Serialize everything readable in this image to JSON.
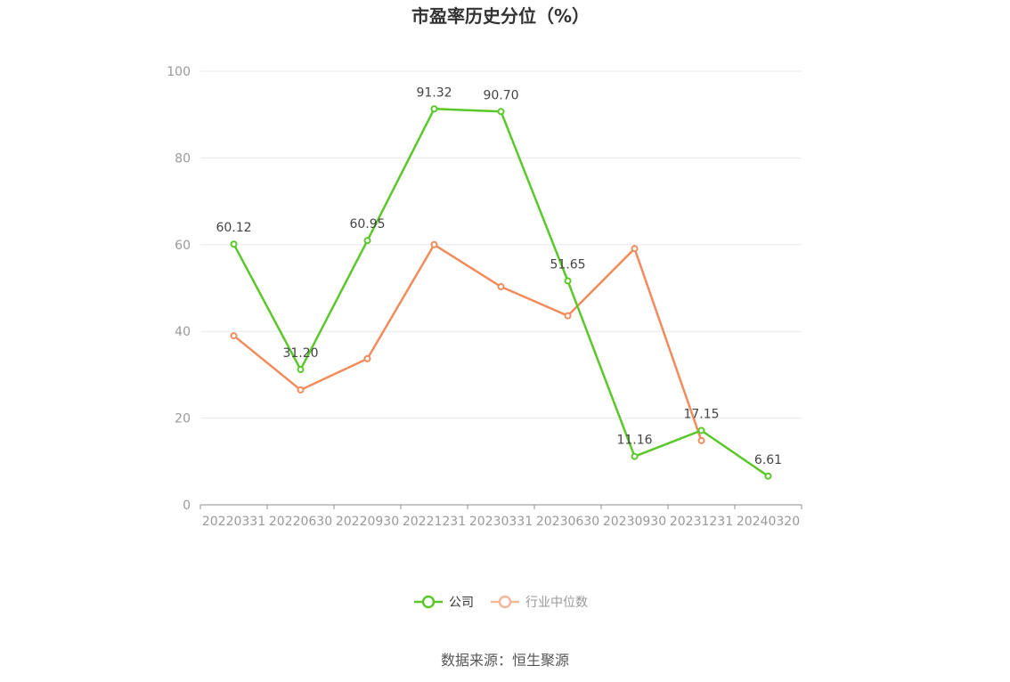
{
  "chart_data": {
    "type": "line",
    "title": "市盈率历史分位（%）",
    "x": [
      "20220331",
      "20220630",
      "20220930",
      "20221231",
      "20230331",
      "20230630",
      "20230930",
      "20231231",
      "20240320"
    ],
    "ylim": [
      0,
      100
    ],
    "yticks": [
      0,
      20,
      40,
      60,
      80,
      100
    ],
    "grid": true,
    "legend_position": "bottom",
    "series": [
      {
        "name": "公司",
        "color": "#5ac82a",
        "values": [
          60.12,
          31.2,
          60.95,
          91.32,
          90.7,
          51.65,
          11.16,
          17.15,
          6.61
        ],
        "labels": [
          "60.12",
          "31.20",
          "60.95",
          "91.32",
          "90.70",
          "51.65",
          "11.16",
          "17.15",
          "6.61"
        ]
      },
      {
        "name": "行业中位数",
        "color": "#f28c5c",
        "values": [
          39.0,
          26.5,
          33.7,
          60.0,
          50.3,
          43.6,
          59.1,
          14.8,
          null
        ]
      }
    ]
  },
  "source": "数据来源：恒生聚源"
}
